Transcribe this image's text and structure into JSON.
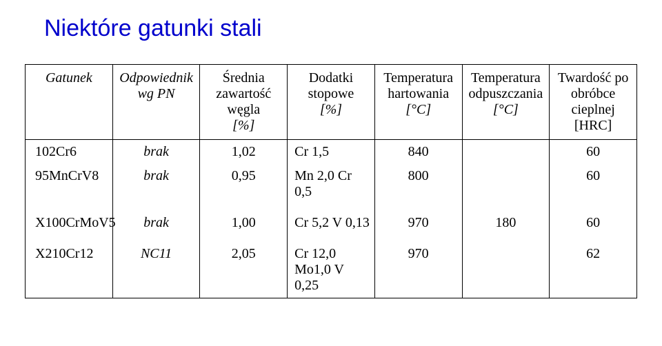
{
  "title": "Niektóre gatunki stali",
  "colors": {
    "title": "#0000cc",
    "text": "#000000",
    "background": "#ffffff",
    "border": "#000000"
  },
  "fontsize": {
    "title": 34,
    "body": 20
  },
  "table": {
    "columns": [
      {
        "key": "gatunek",
        "lines": [
          "Gatunek"
        ],
        "width_pct": 15,
        "align": "left",
        "italic": true
      },
      {
        "key": "odp",
        "lines": [
          "Odpowiednik",
          "wg PN"
        ],
        "width_pct": 14,
        "align": "center",
        "italic": true
      },
      {
        "key": "wegiel",
        "lines": [
          "Średnia",
          "zawartość",
          "węgla",
          "[%]"
        ],
        "width_pct": 11,
        "align": "center",
        "italic": false
      },
      {
        "key": "dodatki",
        "lines": [
          "Dodatki stopowe",
          "[%]"
        ],
        "width_pct": 17,
        "align": "left",
        "italic": false
      },
      {
        "key": "thart",
        "lines": [
          "Temperatura",
          "hartowania",
          "[°C]"
        ],
        "width_pct": 14,
        "align": "center",
        "italic": false
      },
      {
        "key": "todp",
        "lines": [
          "Temperatura",
          "odpuszczania",
          "[°C]"
        ],
        "width_pct": 14,
        "align": "center",
        "italic": false
      },
      {
        "key": "tward",
        "lines": [
          "Twardość po",
          "obróbce",
          "cieplnej",
          "[HRC]"
        ],
        "width_pct": 15,
        "align": "center",
        "italic": false
      }
    ],
    "rows": [
      {
        "gatunek": "102Cr6",
        "odp": "brak",
        "wegiel": "1,02",
        "dodatki": "Cr 1,5",
        "thart": "840",
        "todp": "",
        "tward": "60"
      },
      {
        "gatunek": "95MnCrV8",
        "odp": "brak",
        "wegiel": "0,95",
        "dodatki": "Mn 2,0 Cr 0,5",
        "thart": "800",
        "todp": "",
        "tward": "60"
      },
      {
        "spacer": true
      },
      {
        "gatunek": "X100CrMoV5",
        "odp": "brak",
        "wegiel": "1,00",
        "dodatki": "Cr 5,2  V 0,13",
        "thart": "970",
        "todp": "180",
        "tward": "60"
      },
      {
        "spacer": true
      },
      {
        "gatunek": "X210Cr12",
        "odp": "NC11",
        "wegiel": "2,05",
        "dodatki_lines": [
          "Cr 12,0",
          "Mo1,0 V 0,25"
        ],
        "thart": "970",
        "todp": "",
        "tward": "62"
      }
    ]
  }
}
